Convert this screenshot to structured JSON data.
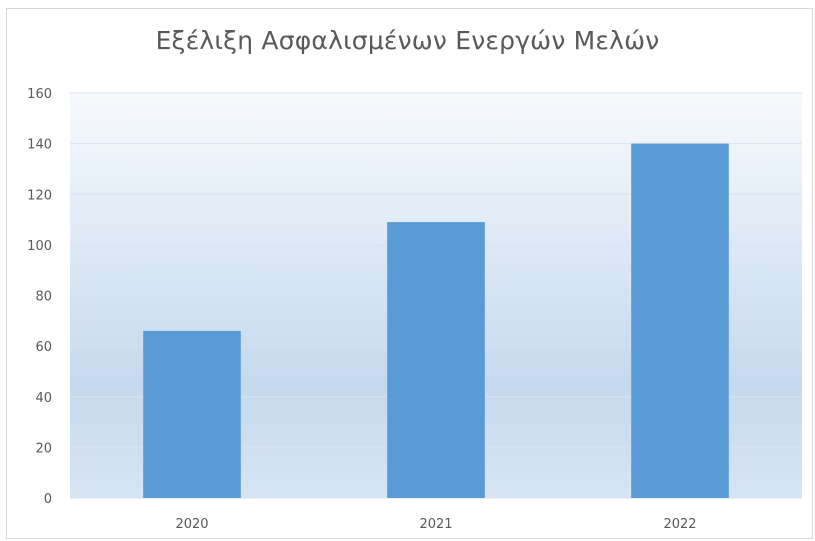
{
  "chart_data": {
    "type": "bar",
    "title": "Εξέλιξη Ασφαλισμένων Ενεργών Μελών",
    "categories": [
      "2020",
      "2021",
      "2022"
    ],
    "values": [
      66,
      109,
      140
    ],
    "ylim": [
      0,
      160
    ],
    "yticks": [
      "0",
      "20",
      "40",
      "60",
      "80",
      "100",
      "120",
      "140",
      "160"
    ],
    "grid": true,
    "legend": "none",
    "colors": {
      "bar": "#5b9bd5",
      "gridline": "#d9e3ef",
      "plot_gradient_top": "#f7fafd",
      "plot_gradient_mid": "#c5d9ee",
      "plot_gradient_bottom": "#d7e5f3"
    }
  }
}
